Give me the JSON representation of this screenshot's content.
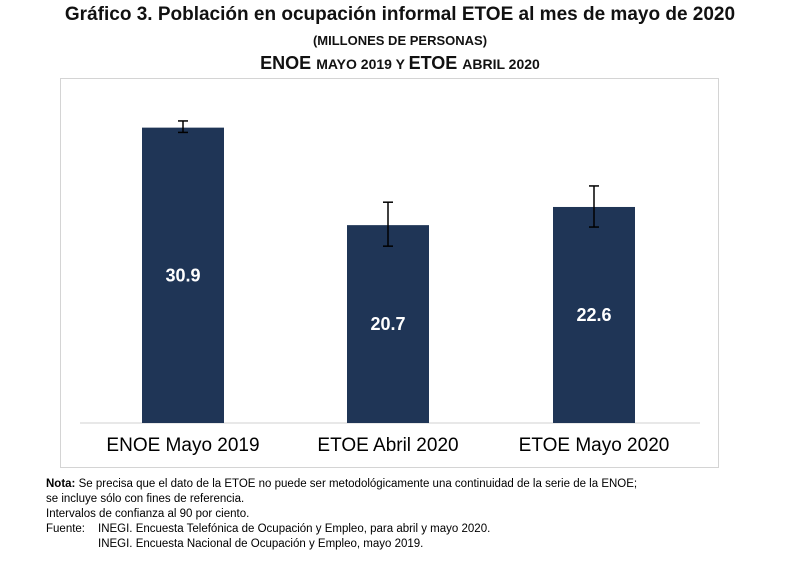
{
  "title": {
    "line1_a": "Gráfico 3. Población en ocupación informal ",
    "line1_b": "ETOE",
    "line1_c": " al mes de mayo de ",
    "line1_d": "2020",
    "line2": "(millones de personas)",
    "line3_a": "ENOE ",
    "line3_b": "mayo 2019 y ",
    "line3_c": "ETOE ",
    "line3_d": "abril 2020"
  },
  "chart_data": {
    "type": "bar",
    "categories": [
      "ENOE Mayo 2019",
      "ETOE Abril 2020",
      "ETOE Mayo 2020"
    ],
    "values": [
      30.9,
      20.7,
      22.6
    ],
    "error_low": [
      30.4,
      18.5,
      20.5
    ],
    "error_high": [
      31.6,
      23.1,
      24.8
    ],
    "value_labels": [
      "30.9",
      "20.7",
      "22.6"
    ],
    "bar_color": "#1f3556",
    "ylim": [
      0,
      34
    ],
    "title": "",
    "xlabel": "",
    "ylabel": ""
  },
  "note": {
    "label": "Nota:",
    "line1": " Se precisa que el dato de la ETOE no puede ser metodológicamente una continuidad de la serie de la ENOE;",
    "line2": "se incluye sólo con fines de referencia.",
    "line3": "Intervalos de confianza al 90 por ciento.",
    "source_label": "Fuente:",
    "source1": "INEGI. Encuesta Telefónica de Ocupación y Empleo, para abril y mayo 2020.",
    "source2": "INEGI. Encuesta Nacional de Ocupación y Empleo, mayo 2019."
  }
}
